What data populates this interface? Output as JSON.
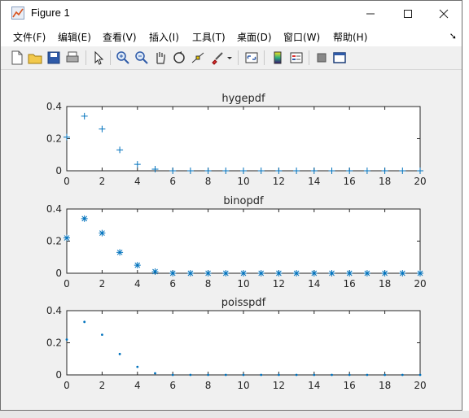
{
  "window": {
    "title": "Figure 1"
  },
  "menu": [
    "文件(F)",
    "编辑(E)",
    "查看(V)",
    "插入(I)",
    "工具(T)",
    "桌面(D)",
    "窗口(W)",
    "帮助(H)"
  ],
  "toolbar_icons": [
    "new-figure-icon",
    "open-icon",
    "save-icon",
    "print-icon",
    "pointer-icon",
    "zoom-in-icon",
    "zoom-out-icon",
    "pan-icon",
    "rotate-icon",
    "data-cursor-icon",
    "brush-icon",
    "link-plot-icon",
    "colorbar-icon",
    "legend-icon",
    "hide-plot-tools-icon",
    "show-plot-tools-icon"
  ],
  "chart_data": [
    {
      "type": "scatter",
      "title": "hygepdf",
      "marker": "+",
      "color": "#0072bd",
      "xlim": [
        0,
        20
      ],
      "ylim": [
        0,
        0.4
      ],
      "xticks": [
        0,
        2,
        4,
        6,
        8,
        10,
        12,
        14,
        16,
        18,
        20
      ],
      "yticks": [
        0,
        0.2,
        0.4
      ],
      "x": [
        0,
        1,
        2,
        3,
        4,
        5,
        6,
        7,
        8,
        9,
        10,
        11,
        12,
        13,
        14,
        15,
        16,
        17,
        18,
        19,
        20
      ],
      "y": [
        0.21,
        0.34,
        0.26,
        0.13,
        0.04,
        0.01,
        0,
        0,
        0,
        0,
        0,
        0,
        0,
        0,
        0,
        0,
        0,
        0,
        0,
        0,
        0
      ]
    },
    {
      "type": "scatter",
      "title": "binopdf",
      "marker": "*",
      "color": "#0072bd",
      "xlim": [
        0,
        20
      ],
      "ylim": [
        0,
        0.4
      ],
      "xticks": [
        0,
        2,
        4,
        6,
        8,
        10,
        12,
        14,
        16,
        18,
        20
      ],
      "yticks": [
        0,
        0.2,
        0.4
      ],
      "x": [
        0,
        1,
        2,
        3,
        4,
        5,
        6,
        7,
        8,
        9,
        10,
        11,
        12,
        13,
        14,
        15,
        16,
        17,
        18,
        19,
        20
      ],
      "y": [
        0.22,
        0.34,
        0.25,
        0.13,
        0.05,
        0.01,
        0,
        0,
        0,
        0,
        0,
        0,
        0,
        0,
        0,
        0,
        0,
        0,
        0,
        0,
        0
      ]
    },
    {
      "type": "scatter",
      "title": "poisspdf",
      "marker": ".",
      "color": "#0072bd",
      "xlim": [
        0,
        20
      ],
      "ylim": [
        0,
        0.4
      ],
      "xticks": [
        0,
        2,
        4,
        6,
        8,
        10,
        12,
        14,
        16,
        18,
        20
      ],
      "yticks": [
        0,
        0.2,
        0.4
      ],
      "x": [
        0,
        1,
        2,
        3,
        4,
        5,
        6,
        7,
        8,
        9,
        10,
        11,
        12,
        13,
        14,
        15,
        16,
        17,
        18,
        19,
        20
      ],
      "y": [
        0.22,
        0.33,
        0.25,
        0.13,
        0.05,
        0.01,
        0,
        0,
        0,
        0,
        0,
        0,
        0,
        0,
        0,
        0,
        0,
        0,
        0,
        0,
        0
      ]
    }
  ]
}
